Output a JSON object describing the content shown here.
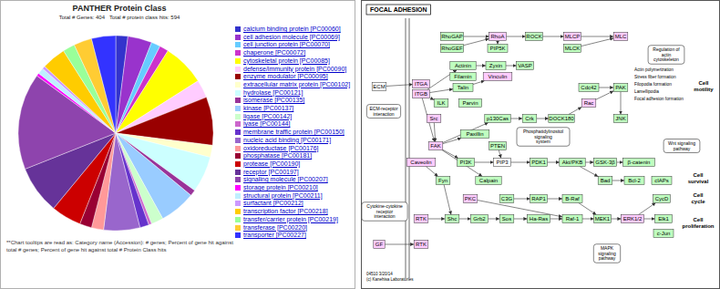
{
  "chart_data": {
    "type": "pie",
    "title": "PANTHER Protein Class",
    "subtitle": "Total # Genes: 404   Total # protein class hits: 594",
    "categories": [
      "calcium binding protein [PC00060]",
      "cell adhesion molecule [PC00069]",
      "cell junction protein [PC00070]",
      "chaperone [PC00072]",
      "cytoskeletal protein [PC00085]",
      "defense/immunity protein [PC00090]",
      "enzyme modulator [PC00095]",
      "extracellular matrix protein [PC00102]",
      "hydrolase [PC00121]",
      "isomerase [PC00135]",
      "kinase [PC00137]",
      "ligase [PC00142]",
      "lyase [PC00144]",
      "membrane traffic protein [PC00150]",
      "nucleic acid binding [PC00171]",
      "oxidoreductase [PC00176]",
      "phosphatase [PC00181]",
      "protease [PC00190]",
      "receptor [PC00197]",
      "signaling molecule [PC00207]",
      "storage protein [PC00210]",
      "structural protein [PC00211]",
      "surfactant [PC00212]",
      "transcription factor [PC00218]",
      "transfer/carrier protein [PC00219]",
      "transferase [PC00220]",
      "transporter [PC00227]"
    ],
    "values": [
      2,
      4,
      1.5,
      1.5,
      7,
      3,
      8,
      2,
      6,
      1,
      6,
      2,
      0.5,
      1.5,
      6,
      2,
      2,
      5,
      8,
      16,
      0.5,
      1,
      0.5,
      4,
      2,
      3,
      4
    ],
    "colors": [
      "#3333cc",
      "#9933cc",
      "#66ccff",
      "#cc33cc",
      "#ffff00",
      "#ffccff",
      "#990000",
      "#ffffcc",
      "#ccffff",
      "#993399",
      "#99ccff",
      "#ccffcc",
      "#cc66cc",
      "#6633cc",
      "#9966cc",
      "#ff9999",
      "#990033",
      "#cc0000",
      "#663399",
      "#8e44ad",
      "#ff00ff",
      "#bfefff",
      "#cc99ff",
      "#ffcc00",
      "#99ff99",
      "#ffcc33",
      "#3333ff"
    ],
    "annotations": [
      "**Chart tooltips are read as: Category name (Accession): # genes; Percent of gene hit against total # genes; Percent of gene hit against total # Protein Class hits"
    ]
  },
  "diagram": {
    "title": "FOCAL ADHESION",
    "nodes": [
      {
        "label": "ECM",
        "color": "#ffffff"
      },
      {
        "label": "ITGA",
        "color": "#ffccff"
      },
      {
        "label": "ITGB",
        "color": "#ffccff"
      },
      {
        "label": "RhoGAP",
        "color": "#bfffbf"
      },
      {
        "label": "RhoGEF",
        "color": "#bfffbf"
      },
      {
        "label": "RhoA",
        "color": "#ffccff"
      },
      {
        "label": "ROCK",
        "color": "#bfffbf"
      },
      {
        "label": "MLCP",
        "color": "#ffccff"
      },
      {
        "label": "MLC",
        "color": "#ffccff"
      },
      {
        "label": "PIP5K",
        "color": "#bfffbf"
      },
      {
        "label": "MLCK",
        "color": "#bfffbf"
      },
      {
        "label": "Actinin",
        "color": "#bfffbf"
      },
      {
        "label": "Zyxin",
        "color": "#bfffbf"
      },
      {
        "label": "VASP",
        "color": "#bfffbf"
      },
      {
        "label": "Filamin",
        "color": "#bfffbf"
      },
      {
        "label": "Vinculin",
        "color": "#ffccff"
      },
      {
        "label": "Talin",
        "color": "#bfffbf"
      },
      {
        "label": "Cdc42",
        "color": "#bfffbf"
      },
      {
        "label": "PAK",
        "color": "#bfffbf"
      },
      {
        "label": "ILK",
        "color": "#bfffbf"
      },
      {
        "label": "Parvin",
        "color": "#bfffbf"
      },
      {
        "label": "Rac",
        "color": "#ffccff"
      },
      {
        "label": "Src",
        "color": "#ffccff"
      },
      {
        "label": "p130Cas",
        "color": "#bfffbf"
      },
      {
        "label": "Crk",
        "color": "#bfffbf"
      },
      {
        "label": "DOCK180",
        "color": "#bfffbf"
      },
      {
        "label": "JNK",
        "color": "#bfffbf"
      },
      {
        "label": "Paxillin",
        "color": "#bfffbf"
      },
      {
        "label": "FAK",
        "color": "#ffccff"
      },
      {
        "label": "PTEN",
        "color": "#bfffbf"
      },
      {
        "label": "Caveolin",
        "color": "#ffccff"
      },
      {
        "label": "PI3K",
        "color": "#bfffbf"
      },
      {
        "label": "PIP3",
        "color": "#ffffff"
      },
      {
        "label": "PDK1",
        "color": "#bfffbf"
      },
      {
        "label": "Akt/PKB",
        "color": "#bfffbf"
      },
      {
        "label": "GSK-3β",
        "color": "#bfffbf"
      },
      {
        "label": "β-catenin",
        "color": "#bfffbf"
      },
      {
        "label": "Fyn",
        "color": "#bfffbf"
      },
      {
        "label": "Calpain",
        "color": "#bfffbf"
      },
      {
        "label": "Bad",
        "color": "#bfffbf"
      },
      {
        "label": "Bcl-2",
        "color": "#bfffbf"
      },
      {
        "label": "cIAPs",
        "color": "#bfffbf"
      },
      {
        "label": "PKC",
        "color": "#ffccff"
      },
      {
        "label": "C3G",
        "color": "#bfffbf"
      },
      {
        "label": "RAP1",
        "color": "#bfffbf"
      },
      {
        "label": "B-Raf",
        "color": "#bfffbf"
      },
      {
        "label": "CycD",
        "color": "#bfffbf"
      },
      {
        "label": "RTK",
        "color": "#ffccff"
      },
      {
        "label": "Shc",
        "color": "#bfffbf"
      },
      {
        "label": "Grb2",
        "color": "#bfffbf"
      },
      {
        "label": "Sos",
        "color": "#bfffbf"
      },
      {
        "label": "Ha-Ras",
        "color": "#bfffbf"
      },
      {
        "label": "Raf-1",
        "color": "#bfffbf"
      },
      {
        "label": "MEK1",
        "color": "#bfffbf"
      },
      {
        "label": "ERK1/2",
        "color": "#ffccff"
      },
      {
        "label": "Elk1",
        "color": "#bfffbf"
      },
      {
        "label": "c-Jun",
        "color": "#bfffbf"
      },
      {
        "label": "GF",
        "color": "#ffccff"
      },
      {
        "label": "RTK",
        "color": "#ffccff"
      }
    ],
    "pathways": [
      "ECM-receptor interaction",
      "Cytokine-cytokine receptor interaction",
      "Regulation of actin cytoskeleton",
      "Phosphatidylinositol signaling system",
      "Wnt signaling pathway",
      "MAPK signaling pathway"
    ],
    "outcomes": [
      "Cell motility",
      "Cell survival",
      "Cell cycle",
      "Cell proliferation"
    ],
    "processes": [
      "Actin polymerization",
      "Stress fiber formation",
      "Filopodia formation",
      "Lamellipodia",
      "Focal adhesion formation"
    ],
    "footer": [
      "04510 3/20/14",
      "(c) Kanehisa Laboratories"
    ]
  }
}
